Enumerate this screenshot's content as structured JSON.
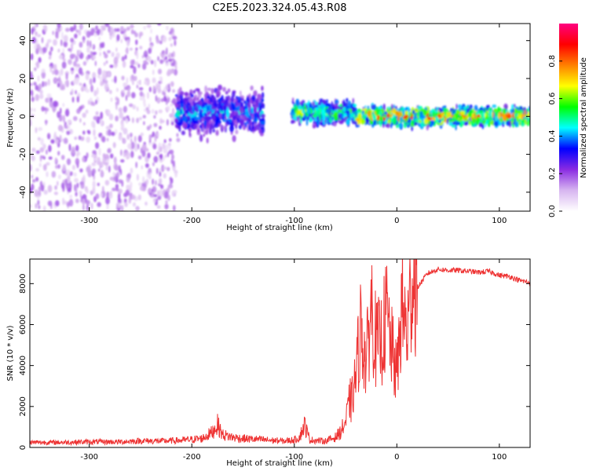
{
  "title": "C2E5.2023.324.05.43.R08",
  "chart_data": [
    {
      "type": "heatmap",
      "xlabel": "Height of straight line (km)",
      "ylabel": "Frequency (Hz)",
      "xlim": [
        -358,
        130
      ],
      "ylim": [
        -50,
        49
      ],
      "x_ticks": [
        -300,
        -200,
        -100,
        0,
        100
      ],
      "y_ticks": [
        -40,
        -20,
        0,
        20,
        40
      ],
      "colorbar": {
        "label": "Normalized spectral amplitude",
        "range": [
          0,
          1
        ],
        "ticks": [
          0.0,
          0.2,
          0.4,
          0.6,
          0.8
        ],
        "tick_labels": [
          "0.0",
          "0.2",
          "0.4",
          "0.6",
          "0.8"
        ],
        "colormap": [
          "#ffffff",
          "#d7b5f0",
          "#8a2be2",
          "#0000ff",
          "#00ffff",
          "#00ff00",
          "#ffff00",
          "#ff8000",
          "#ff0000",
          "#ff0080"
        ]
      },
      "bands": [
        {
          "x_start": -358,
          "x_end": -215,
          "freq_spread": 49,
          "amplitude": 0.15,
          "description": "noise"
        },
        {
          "x_start": -215,
          "x_end": -130,
          "center_freq": 2,
          "half_width": 10,
          "amplitude": 0.35
        },
        {
          "x_start": -102,
          "x_end": -40,
          "center_freq": 2,
          "half_width": 5,
          "amplitude": 0.5
        },
        {
          "x_start": -40,
          "x_end": 130,
          "center_freq": 0,
          "half_width": 4,
          "amplitude": 0.65
        }
      ]
    },
    {
      "type": "line",
      "xlabel": "Height of straight line (km)",
      "ylabel": "SNR (10 * v/v)",
      "xlim": [
        -358,
        130
      ],
      "ylim": [
        0,
        9200
      ],
      "x_ticks": [
        -300,
        -200,
        -100,
        0,
        100
      ],
      "y_ticks": [
        0,
        2000,
        4000,
        6000,
        8000
      ],
      "color": "#ee3333",
      "x": [
        -358,
        -330,
        -300,
        -270,
        -250,
        -230,
        -210,
        -190,
        -180,
        -175,
        -170,
        -160,
        -150,
        -130,
        -110,
        -100,
        -95,
        -90,
        -85,
        -70,
        -60,
        -55,
        -50,
        -45,
        -40,
        -35,
        -30,
        -25,
        -20,
        -15,
        -10,
        -5,
        0,
        5,
        10,
        15,
        20,
        30,
        40,
        50,
        60,
        70,
        80,
        90,
        100,
        110,
        120,
        130
      ],
      "y": [
        200,
        200,
        220,
        220,
        260,
        250,
        280,
        350,
        600,
        900,
        500,
        400,
        350,
        300,
        250,
        300,
        400,
        900,
        300,
        250,
        400,
        600,
        1000,
        2000,
        3500,
        6000,
        4000,
        7000,
        5000,
        5200,
        6500,
        4800,
        3500,
        7000,
        5500,
        8300,
        7800,
        8500,
        8700,
        8650,
        8650,
        8600,
        8550,
        8600,
        8400,
        8350,
        8150,
        8050
      ]
    }
  ]
}
